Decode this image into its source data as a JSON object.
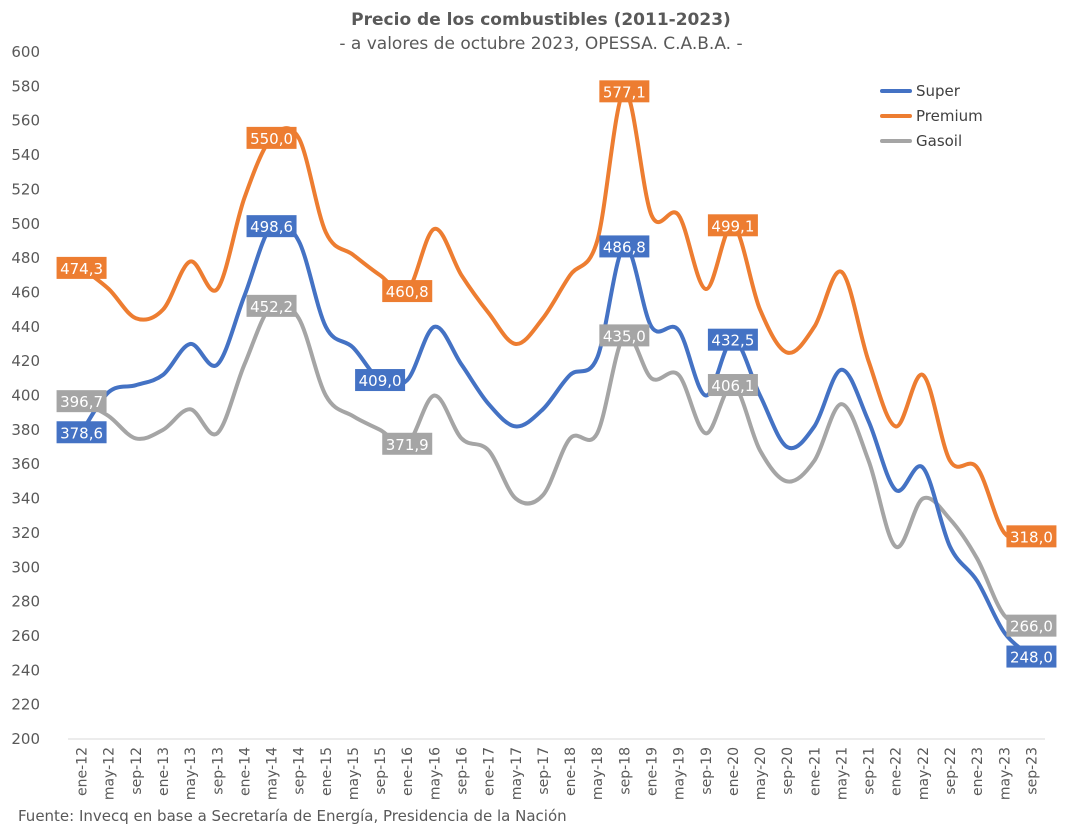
{
  "chart_data": {
    "type": "line",
    "title": "Precio de los combustibles (2011-2023)",
    "subtitle": "- a valores de octubre 2023, OPESSA. C.A.B.A. -",
    "source": "Fuente: Invecq en base a Secretaría de Energía, Presidencia de la Nación",
    "ylim": [
      200,
      600
    ],
    "yticks": [
      200,
      220,
      240,
      260,
      280,
      300,
      320,
      340,
      360,
      380,
      400,
      420,
      440,
      460,
      480,
      500,
      520,
      540,
      560,
      580,
      600
    ],
    "grid": false,
    "legend_position": "top-right",
    "x_tick_labels": [
      "ene-12",
      "may-12",
      "sep-12",
      "ene-13",
      "may-13",
      "sep-13",
      "ene-14",
      "may-14",
      "sep-14",
      "ene-15",
      "may-15",
      "sep-15",
      "ene-16",
      "may-16",
      "sep-16",
      "ene-17",
      "may-17",
      "sep-17",
      "ene-18",
      "may-18",
      "sep-18",
      "ene-19",
      "may-19",
      "sep-19",
      "ene-20",
      "may-20",
      "sep-20",
      "ene-21",
      "may-21",
      "sep-21",
      "ene-22",
      "may-22",
      "sep-22",
      "ene-23",
      "may-23",
      "sep-23"
    ],
    "series": [
      {
        "name": "Super",
        "color": "#4472C4",
        "points": [
          {
            "x": "ene-12",
            "y": 378.6
          },
          {
            "x": "may-12",
            "y": 402
          },
          {
            "x": "sep-12",
            "y": 406
          },
          {
            "x": "ene-13",
            "y": 412
          },
          {
            "x": "may-13",
            "y": 430
          },
          {
            "x": "sep-13",
            "y": 418
          },
          {
            "x": "ene-14",
            "y": 458
          },
          {
            "x": "may-14",
            "y": 498.6
          },
          {
            "x": "sep-14",
            "y": 490
          },
          {
            "x": "ene-15",
            "y": 440
          },
          {
            "x": "may-15",
            "y": 428
          },
          {
            "x": "sep-15",
            "y": 409.0
          },
          {
            "x": "ene-16",
            "y": 409
          },
          {
            "x": "may-16",
            "y": 440
          },
          {
            "x": "sep-16",
            "y": 418
          },
          {
            "x": "ene-17",
            "y": 395
          },
          {
            "x": "may-17",
            "y": 382
          },
          {
            "x": "sep-17",
            "y": 392
          },
          {
            "x": "ene-18",
            "y": 412
          },
          {
            "x": "may-18",
            "y": 422
          },
          {
            "x": "sep-18",
            "y": 486.8
          },
          {
            "x": "ene-19",
            "y": 440
          },
          {
            "x": "may-19",
            "y": 438
          },
          {
            "x": "sep-19",
            "y": 400
          },
          {
            "x": "ene-20",
            "y": 432.5
          },
          {
            "x": "may-20",
            "y": 400
          },
          {
            "x": "sep-20",
            "y": 370
          },
          {
            "x": "ene-21",
            "y": 382
          },
          {
            "x": "may-21",
            "y": 415
          },
          {
            "x": "sep-21",
            "y": 385
          },
          {
            "x": "ene-22",
            "y": 345
          },
          {
            "x": "may-22",
            "y": 358
          },
          {
            "x": "sep-22",
            "y": 312
          },
          {
            "x": "ene-23",
            "y": 292
          },
          {
            "x": "may-23",
            "y": 262
          },
          {
            "x": "sep-23",
            "y": 248.0
          }
        ]
      },
      {
        "name": "Premium",
        "color": "#ED7D31",
        "points": [
          {
            "x": "ene-12",
            "y": 474.3
          },
          {
            "x": "may-12",
            "y": 462
          },
          {
            "x": "sep-12",
            "y": 445
          },
          {
            "x": "ene-13",
            "y": 450
          },
          {
            "x": "may-13",
            "y": 478
          },
          {
            "x": "sep-13",
            "y": 462
          },
          {
            "x": "ene-14",
            "y": 515
          },
          {
            "x": "may-14",
            "y": 550.0
          },
          {
            "x": "sep-14",
            "y": 550
          },
          {
            "x": "ene-15",
            "y": 495
          },
          {
            "x": "may-15",
            "y": 482
          },
          {
            "x": "sep-15",
            "y": 470
          },
          {
            "x": "ene-16",
            "y": 460.8
          },
          {
            "x": "may-16",
            "y": 497
          },
          {
            "x": "sep-16",
            "y": 470
          },
          {
            "x": "ene-17",
            "y": 448
          },
          {
            "x": "may-17",
            "y": 430
          },
          {
            "x": "sep-17",
            "y": 445
          },
          {
            "x": "ene-18",
            "y": 470
          },
          {
            "x": "may-18",
            "y": 490
          },
          {
            "x": "sep-18",
            "y": 577.1
          },
          {
            "x": "ene-19",
            "y": 505
          },
          {
            "x": "may-19",
            "y": 505
          },
          {
            "x": "sep-19",
            "y": 462
          },
          {
            "x": "ene-20",
            "y": 499.1
          },
          {
            "x": "may-20",
            "y": 450
          },
          {
            "x": "sep-20",
            "y": 425
          },
          {
            "x": "ene-21",
            "y": 440
          },
          {
            "x": "may-21",
            "y": 472
          },
          {
            "x": "sep-21",
            "y": 420
          },
          {
            "x": "ene-22",
            "y": 382
          },
          {
            "x": "may-22",
            "y": 412
          },
          {
            "x": "sep-22",
            "y": 362
          },
          {
            "x": "ene-23",
            "y": 358
          },
          {
            "x": "may-23",
            "y": 320
          },
          {
            "x": "sep-23",
            "y": 318.0
          }
        ]
      },
      {
        "name": "Gasoil",
        "color": "#A5A5A5",
        "points": [
          {
            "x": "ene-12",
            "y": 396.7
          },
          {
            "x": "may-12",
            "y": 388
          },
          {
            "x": "sep-12",
            "y": 375
          },
          {
            "x": "ene-13",
            "y": 380
          },
          {
            "x": "may-13",
            "y": 392
          },
          {
            "x": "sep-13",
            "y": 378
          },
          {
            "x": "ene-14",
            "y": 418
          },
          {
            "x": "may-14",
            "y": 452.2
          },
          {
            "x": "sep-14",
            "y": 445
          },
          {
            "x": "ene-15",
            "y": 400
          },
          {
            "x": "may-15",
            "y": 388
          },
          {
            "x": "sep-15",
            "y": 380
          },
          {
            "x": "ene-16",
            "y": 371.9
          },
          {
            "x": "may-16",
            "y": 400
          },
          {
            "x": "sep-16",
            "y": 375
          },
          {
            "x": "ene-17",
            "y": 368
          },
          {
            "x": "may-17",
            "y": 340
          },
          {
            "x": "sep-17",
            "y": 342
          },
          {
            "x": "ene-18",
            "y": 375
          },
          {
            "x": "may-18",
            "y": 378
          },
          {
            "x": "sep-18",
            "y": 435.0
          },
          {
            "x": "ene-19",
            "y": 410
          },
          {
            "x": "may-19",
            "y": 412
          },
          {
            "x": "sep-19",
            "y": 378
          },
          {
            "x": "ene-20",
            "y": 406.1
          },
          {
            "x": "may-20",
            "y": 368
          },
          {
            "x": "sep-20",
            "y": 350
          },
          {
            "x": "ene-21",
            "y": 362
          },
          {
            "x": "may-21",
            "y": 395
          },
          {
            "x": "sep-21",
            "y": 362
          },
          {
            "x": "ene-22",
            "y": 312
          },
          {
            "x": "may-22",
            "y": 340
          },
          {
            "x": "sep-22",
            "y": 328
          },
          {
            "x": "ene-23",
            "y": 305
          },
          {
            "x": "may-23",
            "y": 272
          },
          {
            "x": "sep-23",
            "y": 266.0
          }
        ]
      }
    ],
    "annotations": [
      {
        "series": "Premium",
        "x": "ene-12",
        "y": 474.3,
        "text": "474,3"
      },
      {
        "series": "Premium",
        "x": "may-14",
        "y": 550.0,
        "text": "550,0"
      },
      {
        "series": "Premium",
        "x": "ene-16",
        "y": 460.8,
        "text": "460,8"
      },
      {
        "series": "Premium",
        "x": "sep-18",
        "y": 577.1,
        "text": "577,1"
      },
      {
        "series": "Premium",
        "x": "ene-20",
        "y": 499.1,
        "text": "499,1"
      },
      {
        "series": "Premium",
        "x": "sep-23",
        "y": 318.0,
        "text": "318,0"
      },
      {
        "series": "Super",
        "x": "ene-12",
        "y": 378.6,
        "text": "378,6"
      },
      {
        "series": "Super",
        "x": "may-14",
        "y": 498.6,
        "text": "498,6"
      },
      {
        "series": "Super",
        "x": "sep-15",
        "y": 409.0,
        "text": "409,0"
      },
      {
        "series": "Super",
        "x": "sep-18",
        "y": 486.8,
        "text": "486,8"
      },
      {
        "series": "Super",
        "x": "ene-20",
        "y": 432.5,
        "text": "432,5"
      },
      {
        "series": "Super",
        "x": "sep-23",
        "y": 248.0,
        "text": "248,0"
      },
      {
        "series": "Gasoil",
        "x": "ene-12",
        "y": 396.7,
        "text": "396,7"
      },
      {
        "series": "Gasoil",
        "x": "may-14",
        "y": 452.2,
        "text": "452,2"
      },
      {
        "series": "Gasoil",
        "x": "ene-16",
        "y": 371.9,
        "text": "371,9"
      },
      {
        "series": "Gasoil",
        "x": "sep-18",
        "y": 435.0,
        "text": "435,0"
      },
      {
        "series": "Gasoil",
        "x": "ene-20",
        "y": 406.1,
        "text": "406,1"
      },
      {
        "series": "Gasoil",
        "x": "sep-23",
        "y": 266.0,
        "text": "266,0"
      }
    ]
  }
}
